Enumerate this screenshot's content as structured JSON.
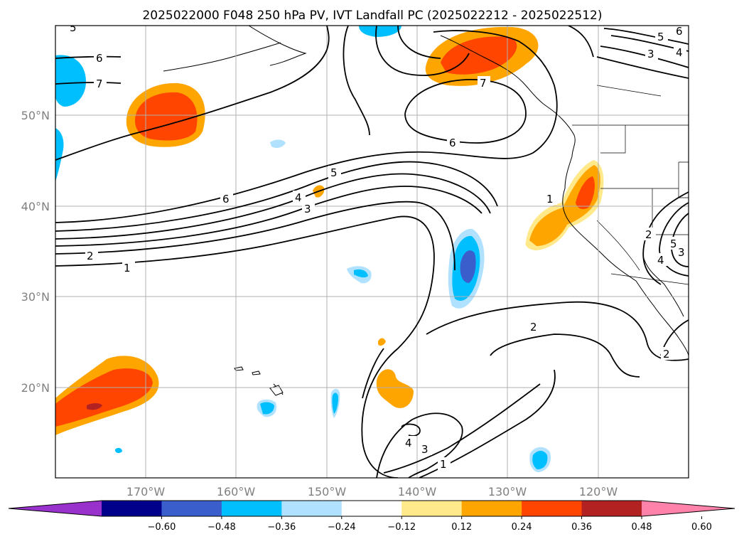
{
  "title": "2025022000 F048 250 hPa PV, IVT Landfall PC (2025022212 - 2025022512)",
  "lon_labels": [
    "170°W",
    "160°W",
    "150°W",
    "140°W",
    "130°W",
    "120°W"
  ],
  "lat_labels": [
    "50°N",
    "40°N",
    "30°N",
    "20°N"
  ],
  "colorbar": {
    "ticks": [
      "−0.60",
      "−0.48",
      "−0.36",
      "−0.24",
      "−0.12",
      "0.12",
      "0.24",
      "0.36",
      "0.48",
      "0.60"
    ],
    "colors": [
      "#9932cc",
      "#00008b",
      "#3a5fcd",
      "#00bfff",
      "#b0e2ff",
      "#ffffff",
      "#ffe98a",
      "#ffa500",
      "#ff4500",
      "#b22222",
      "#ff82ab"
    ]
  },
  "contour_labels": [
    "1",
    "2",
    "3",
    "4",
    "5",
    "6",
    "7",
    "6",
    "5",
    "4",
    "3",
    "6",
    "7",
    "1",
    "2",
    "4",
    "3",
    "1",
    "2",
    "5",
    "2",
    "6",
    "5",
    "4",
    "3"
  ],
  "colors": {
    "orange": "#ffa500",
    "red_orange": "#ff4500",
    "yellow": "#ffe98a",
    "light_blue": "#b0e2ff",
    "blue": "#00bfff",
    "med_blue": "#3a5fcd",
    "dark_red": "#b22222"
  }
}
